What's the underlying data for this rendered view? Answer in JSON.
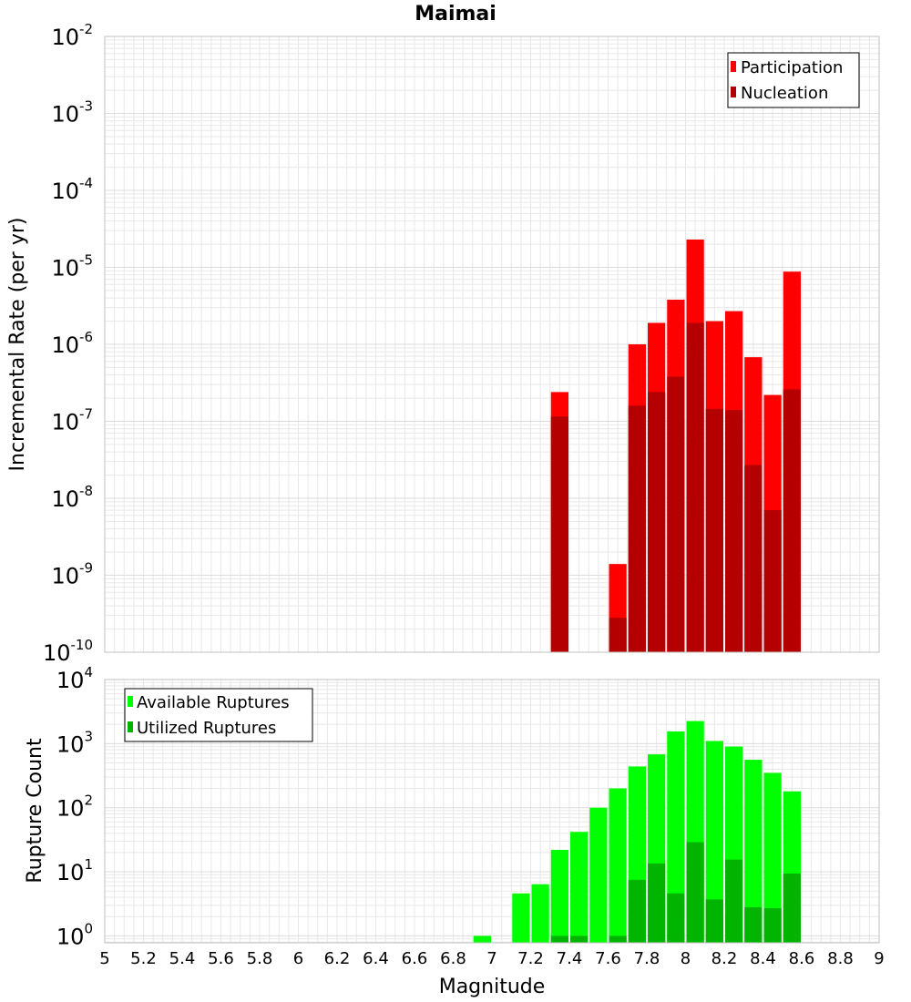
{
  "title": "Maimai",
  "xlabel": "Magnitude",
  "x_ticks": [
    "5",
    "5.2",
    "5.4",
    "5.6",
    "5.8",
    "6",
    "6.2",
    "6.4",
    "6.6",
    "6.8",
    "7",
    "7.2",
    "7.4",
    "7.6",
    "7.8",
    "8",
    "8.2",
    "8.4",
    "8.6",
    "8.8",
    "9"
  ],
  "colors": {
    "participation": "#ff0000",
    "nucleation": "#b40000",
    "available": "#00ff00",
    "utilized": "#00b400",
    "grid": "#e8e8e8",
    "frame": "#c0c0c0"
  },
  "chart_data": [
    {
      "type": "bar",
      "title": "Maimai",
      "xlabel": "Magnitude",
      "ylabel": "Incremental Rate (per yr)",
      "xlim": [
        5,
        9
      ],
      "ylim": [
        1e-10,
        0.01
      ],
      "yscale": "log",
      "bar_width": 0.1,
      "y_ticks": [
        {
          "base": "10",
          "exp": "-2"
        },
        {
          "base": "10",
          "exp": "-3"
        },
        {
          "base": "10",
          "exp": "-4"
        },
        {
          "base": "10",
          "exp": "-5"
        },
        {
          "base": "10",
          "exp": "-6"
        },
        {
          "base": "10",
          "exp": "-7"
        },
        {
          "base": "10",
          "exp": "-8"
        },
        {
          "base": "10",
          "exp": "-9"
        },
        {
          "base": "10",
          "exp": "-10"
        }
      ],
      "legend_position": "top-right",
      "x": [
        7.35,
        7.65,
        7.75,
        7.85,
        7.95,
        8.05,
        8.15,
        8.25,
        8.35,
        8.45,
        8.55
      ],
      "series": [
        {
          "name": "Participation",
          "values": [
            2.4e-07,
            1.4e-09,
            1e-06,
            1.9e-06,
            3.8e-06,
            2.3e-05,
            2e-06,
            2.7e-06,
            6.8e-07,
            2.2e-07,
            8.8e-06
          ]
        },
        {
          "name": "Nucleation",
          "values": [
            1.15e-07,
            2.8e-10,
            1.6e-07,
            2.4e-07,
            3.8e-07,
            1.9e-06,
            1.45e-07,
            1.4e-07,
            2.7e-08,
            7e-09,
            2.6e-07
          ]
        }
      ]
    },
    {
      "type": "bar",
      "xlabel": "Magnitude",
      "ylabel": "Rupture Count",
      "xlim": [
        5,
        9
      ],
      "ylim": [
        0.78,
        10000
      ],
      "yscale": "log",
      "bar_width": 0.1,
      "y_ticks": [
        {
          "base": "10",
          "exp": "4"
        },
        {
          "base": "10",
          "exp": "3"
        },
        {
          "base": "10",
          "exp": "2"
        },
        {
          "base": "10",
          "exp": "1"
        },
        {
          "base": "10",
          "exp": "0"
        }
      ],
      "legend_position": "top-left",
      "x": [
        6.95,
        7.15,
        7.25,
        7.35,
        7.45,
        7.55,
        7.65,
        7.75,
        7.85,
        7.95,
        8.05,
        8.15,
        8.25,
        8.35,
        8.45,
        8.55
      ],
      "series": [
        {
          "name": "Available Ruptures",
          "values": [
            1,
            4.6,
            6.4,
            22,
            42,
            100,
            200,
            440,
            680,
            1550,
            2250,
            1100,
            900,
            560,
            350,
            180
          ]
        },
        {
          "name": "Utilized Ruptures",
          "values": [
            0,
            0,
            0,
            1,
            1,
            0,
            1,
            7.5,
            13.5,
            4.6,
            29,
            3.7,
            15.5,
            2.8,
            2.7,
            9.4
          ]
        }
      ]
    }
  ]
}
